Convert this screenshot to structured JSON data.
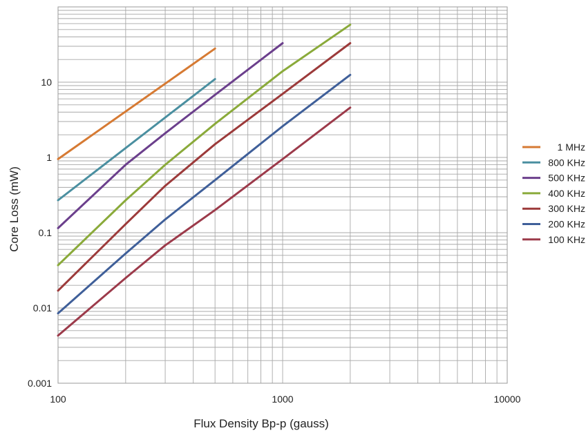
{
  "chart_data": {
    "type": "line",
    "title": "",
    "xlabel": "Flux Density Bp-p (gauss)",
    "ylabel": "Core Loss (mW)",
    "x_scale": "log",
    "y_scale": "log",
    "xlim": [
      100,
      10000
    ],
    "ylim": [
      0.001,
      100
    ],
    "x_ticks": [
      {
        "value": 100,
        "label": "100"
      },
      {
        "value": 1000,
        "label": "1000"
      },
      {
        "value": 10000,
        "label": "10000"
      }
    ],
    "y_ticks": [
      {
        "value": 0.001,
        "label": "0.001"
      },
      {
        "value": 0.01,
        "label": "0.01"
      },
      {
        "value": 0.1,
        "label": "0.1"
      },
      {
        "value": 1,
        "label": "1"
      },
      {
        "value": 10,
        "label": "10"
      }
    ],
    "grid": true,
    "legend_position": "right",
    "series": [
      {
        "name": "1 MHz",
        "color": "#d67a33",
        "points": [
          [
            100,
            0.95
          ],
          [
            500,
            28
          ]
        ]
      },
      {
        "name": "800 KHz",
        "color": "#4a8fa0",
        "points": [
          [
            100,
            0.27
          ],
          [
            500,
            11
          ]
        ]
      },
      {
        "name": "500 KHz",
        "color": "#6b3f8c",
        "points": [
          [
            100,
            0.115
          ],
          [
            200,
            0.8
          ],
          [
            300,
            2.1
          ],
          [
            500,
            6.8
          ],
          [
            1000,
            33
          ]
        ]
      },
      {
        "name": "400 KHz",
        "color": "#8aaa3a",
        "points": [
          [
            100,
            0.037
          ],
          [
            200,
            0.27
          ],
          [
            300,
            0.8
          ],
          [
            500,
            2.8
          ],
          [
            1000,
            14
          ],
          [
            2000,
            58
          ]
        ]
      },
      {
        "name": "300 KHz",
        "color": "#9c3a3a",
        "points": [
          [
            100,
            0.017
          ],
          [
            200,
            0.13
          ],
          [
            300,
            0.42
          ],
          [
            500,
            1.5
          ],
          [
            1000,
            7
          ],
          [
            2000,
            33
          ]
        ]
      },
      {
        "name": "200 KHz",
        "color": "#3f5f99",
        "points": [
          [
            100,
            0.0085
          ],
          [
            200,
            0.053
          ],
          [
            300,
            0.15
          ],
          [
            500,
            0.5
          ],
          [
            1000,
            2.6
          ],
          [
            2000,
            12.5
          ]
        ]
      },
      {
        "name": "100 KHz",
        "color": "#9c3a4a",
        "points": [
          [
            100,
            0.0043
          ],
          [
            200,
            0.025
          ],
          [
            300,
            0.068
          ],
          [
            500,
            0.2
          ],
          [
            1000,
            0.95
          ],
          [
            2000,
            4.6
          ]
        ]
      }
    ]
  }
}
